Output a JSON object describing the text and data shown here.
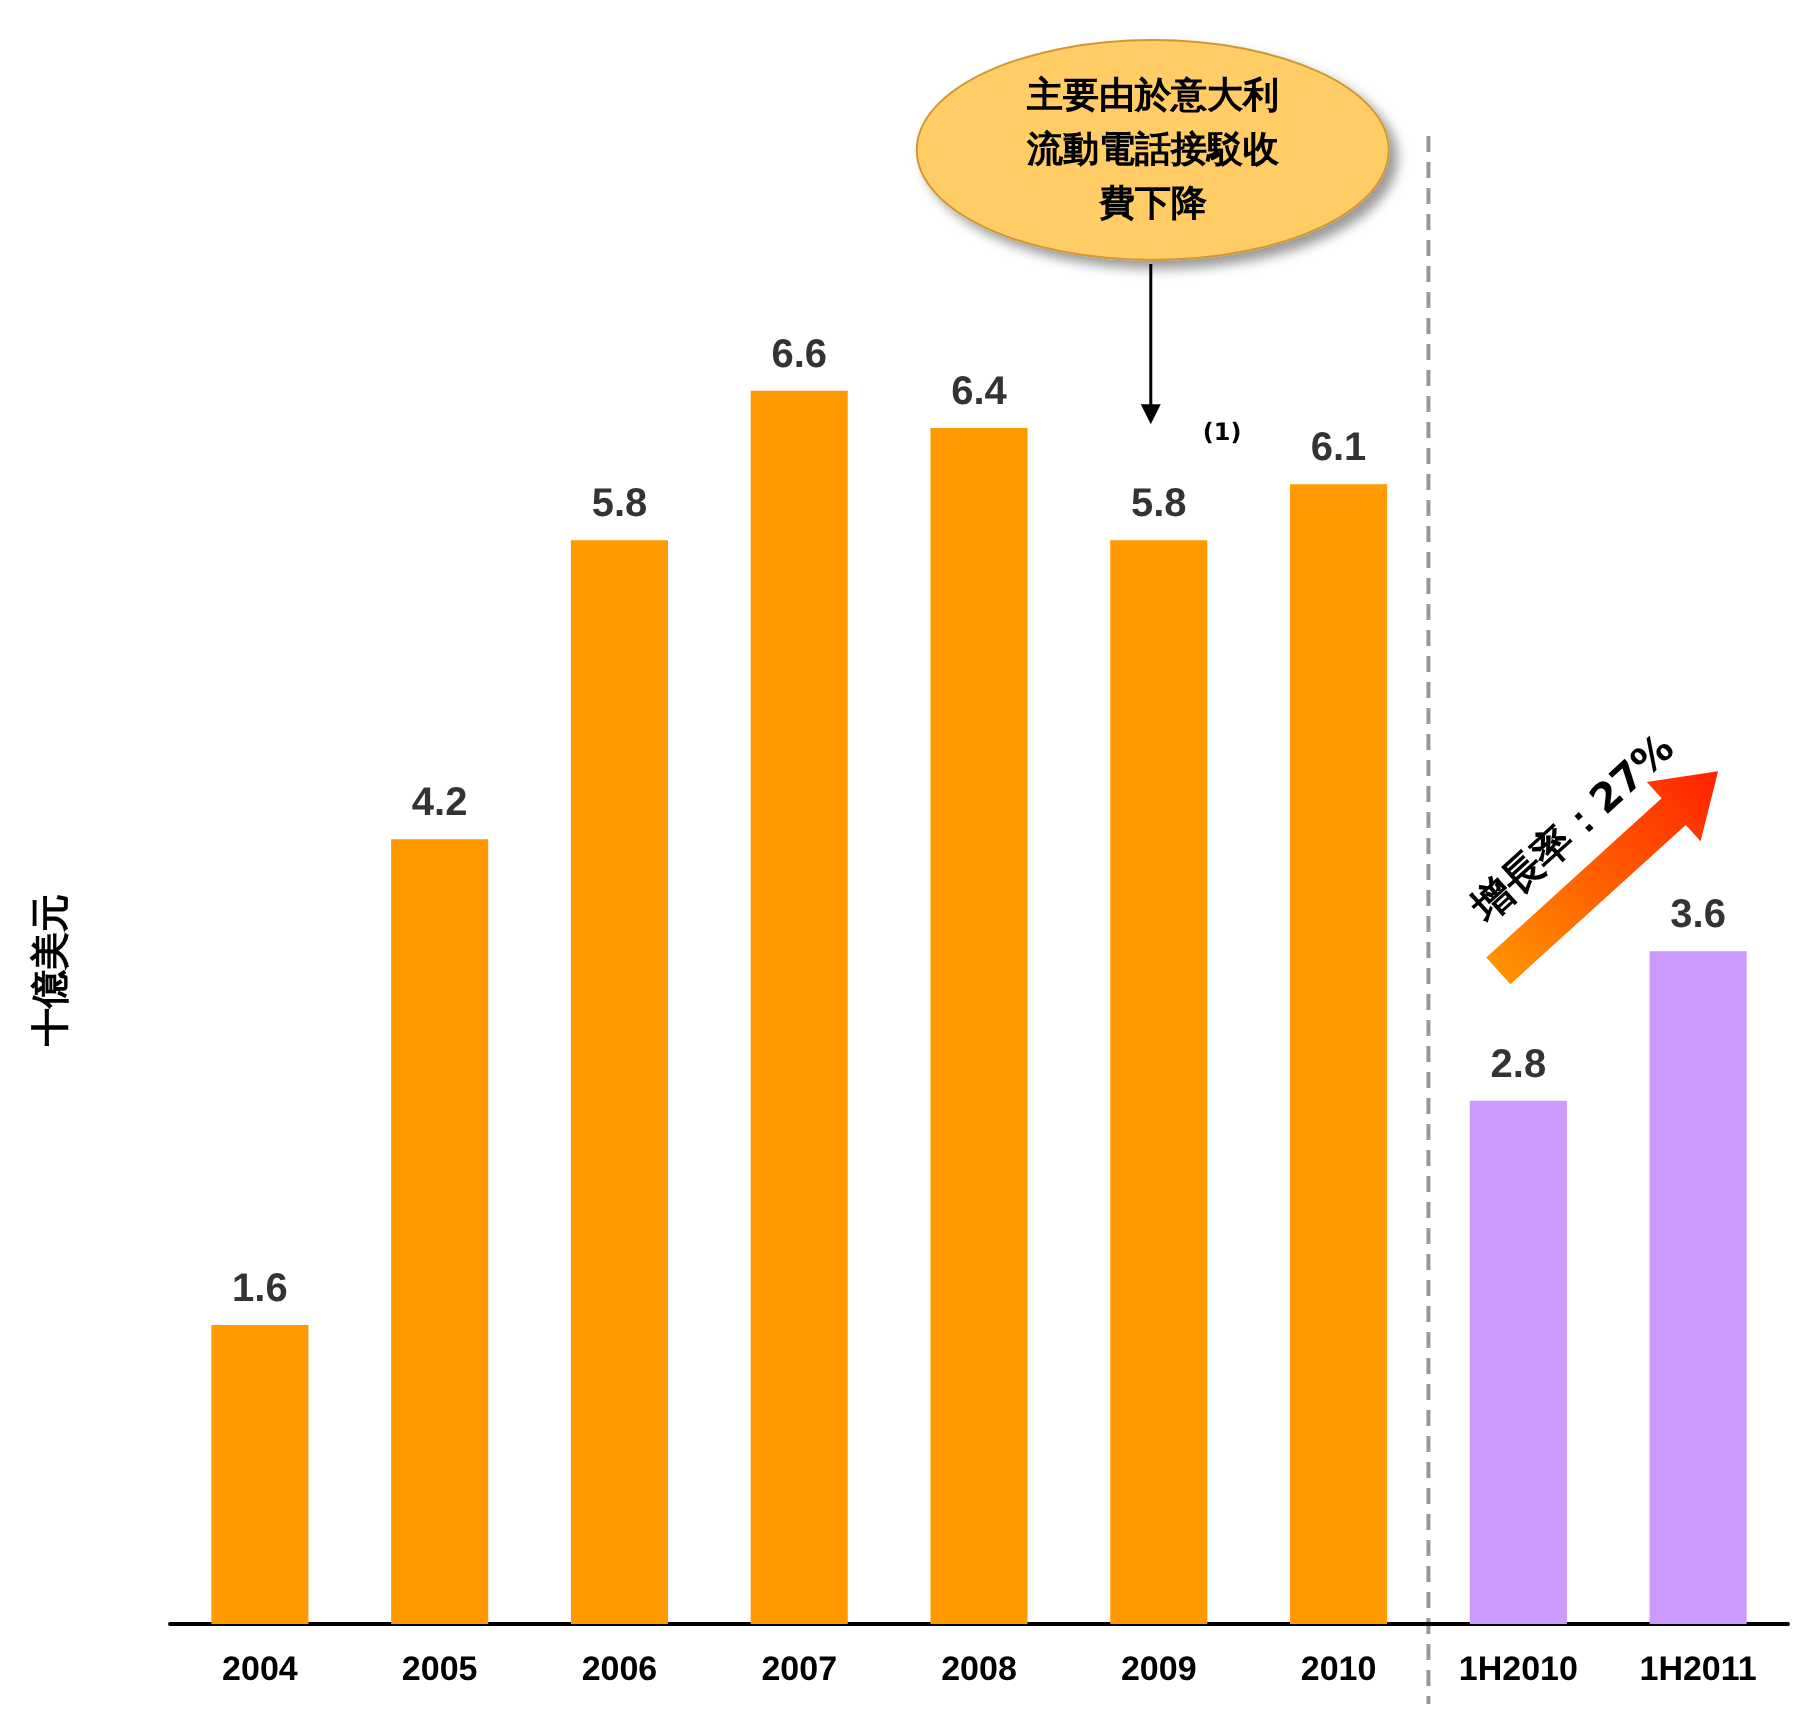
{
  "chart_data": {
    "type": "bar",
    "ylabel": "十億美元",
    "categories": [
      "2004",
      "2005",
      "2006",
      "2007",
      "2008",
      "2009",
      "2010",
      "1H2010",
      "1H2011"
    ],
    "values": [
      1.6,
      4.2,
      5.8,
      6.6,
      6.4,
      5.8,
      6.1,
      2.8,
      3.6
    ],
    "colors": [
      "#ff9900",
      "#ff9900",
      "#ff9900",
      "#ff9900",
      "#ff9900",
      "#ff9900",
      "#ff9900",
      "#cc99ff",
      "#cc99ff"
    ],
    "data_labels": true,
    "grid": false,
    "annotations": [
      "主要由於意大利流動電話接駁收費下降",
      "(1)",
      "增長率：27%"
    ]
  }
}
